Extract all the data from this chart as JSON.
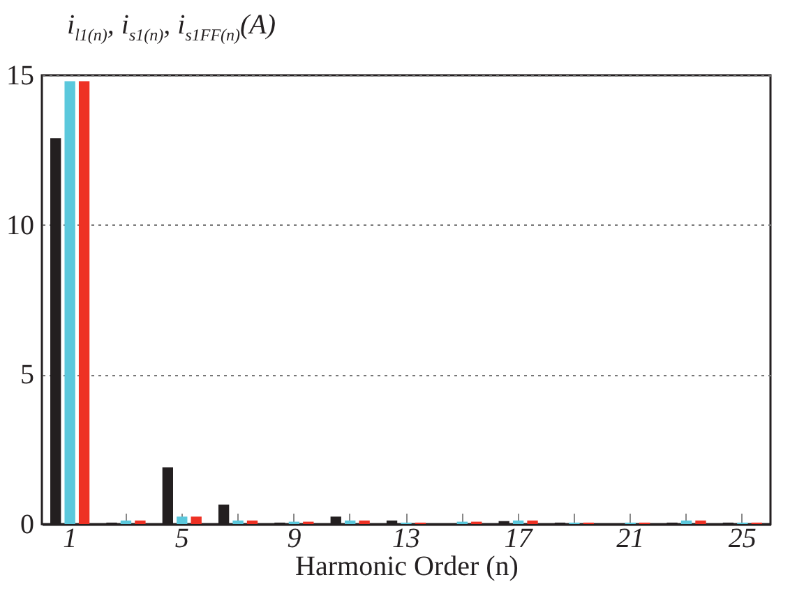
{
  "chart_data": {
    "type": "bar",
    "ylabel": "i$_{l1(n)}$, i$_{s1(n)}$, i$_{s1FF(n)}$(A)",
    "xlabel": "Harmonic Order (n)",
    "categories": [
      "1",
      null,
      "5",
      null,
      "9",
      null,
      "13",
      null,
      "17",
      null,
      "21",
      null,
      "25"
    ],
    "series": [
      {
        "color": "#231f20",
        "values": [
          12.9,
          0.05,
          1.9,
          0.65,
          0.05,
          0.25,
          0.12,
          0,
          0.1,
          0.05,
          0,
          0.05,
          0.05
        ]
      },
      {
        "color": "#5bc8dc",
        "values": [
          14.8,
          0.12,
          0.25,
          0.12,
          0.08,
          0.12,
          0.05,
          0.08,
          0.12,
          0.05,
          0.05,
          0.12,
          0.05
        ]
      },
      {
        "color": "#ee3124",
        "values": [
          14.8,
          0.12,
          0.25,
          0.12,
          0.08,
          0.12,
          0.05,
          0.08,
          0.12,
          0.05,
          0.05,
          0.12,
          0.05
        ]
      }
    ],
    "ylim": [
      0,
      15
    ],
    "yticks": [
      0,
      5,
      10,
      15
    ],
    "grid": "y",
    "legend": false
  }
}
